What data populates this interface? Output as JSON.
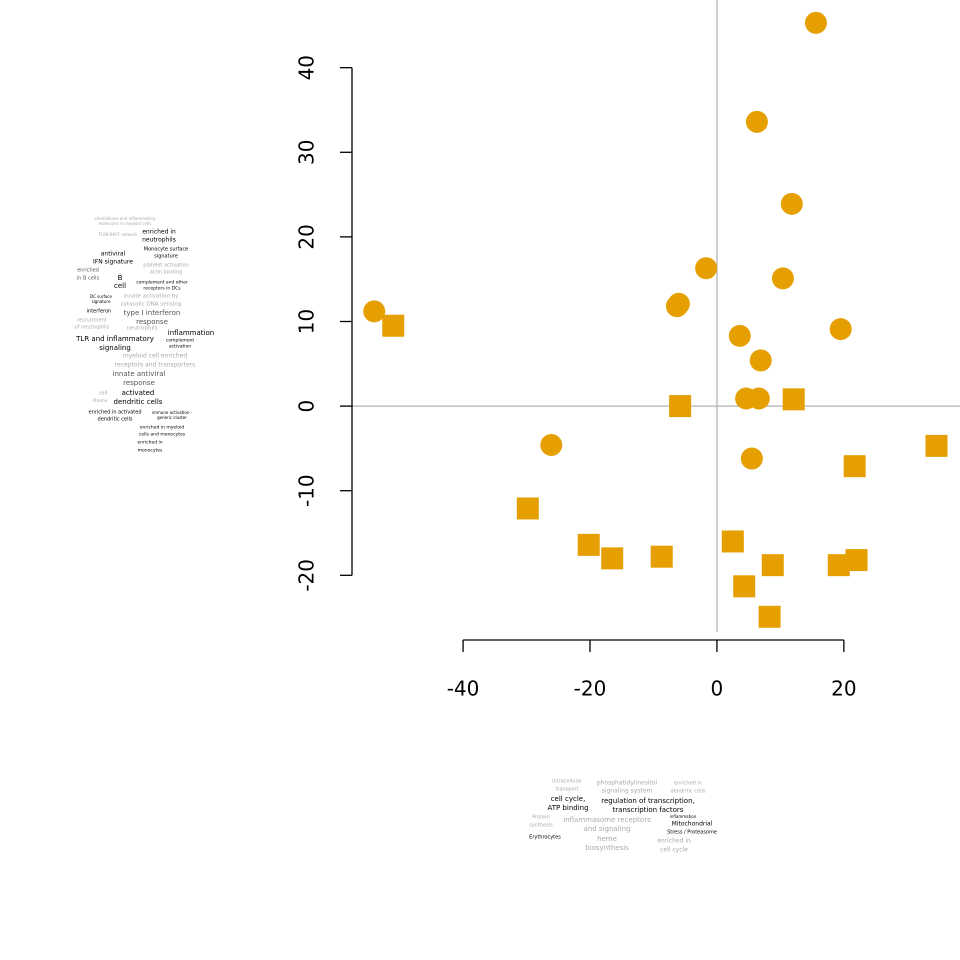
{
  "chart_data": {
    "type": "scatter",
    "xlim": [
      -57.5,
      38.3
    ],
    "ylim": [
      -26.7,
      48.0
    ],
    "xticks": [
      -40,
      -20,
      0,
      20
    ],
    "yticks": [
      -20,
      -10,
      0,
      10,
      20,
      30,
      40
    ],
    "reference_lines": {
      "x": 0,
      "y": 0
    },
    "series": [
      {
        "marker": "circle",
        "color": "#E69F00",
        "x": [
          15.6,
          6.3,
          11.8,
          -1.7,
          10.4,
          -6.0,
          -6.3,
          -54.0,
          19.5,
          3.6,
          6.9,
          4.6,
          6.6,
          -26.1,
          5.5
        ],
        "values": [
          45.3,
          33.6,
          23.9,
          16.3,
          15.1,
          12.1,
          11.8,
          11.2,
          9.1,
          8.3,
          5.4,
          0.9,
          0.9,
          -4.6,
          -6.2
        ]
      },
      {
        "marker": "square",
        "color": "#E69F00",
        "x": [
          -51.0,
          -5.8,
          12.1,
          34.6,
          21.7,
          -29.8,
          -20.2,
          -16.5,
          -8.7,
          2.5,
          4.3,
          8.8,
          8.3,
          19.2,
          22.0
        ],
        "values": [
          9.5,
          0.0,
          0.8,
          -4.7,
          -7.1,
          -12.1,
          -16.4,
          -18.0,
          -17.8,
          -16.0,
          -21.3,
          -18.8,
          -24.9,
          -18.8,
          -18.2
        ]
      }
    ],
    "word_cloud_left": [
      "chemokines and inflammatory",
      "molecules in myeloid cells",
      "enriched in",
      "neutrophils",
      "TLR8-BAFF network",
      "Monocyte surface",
      "signature",
      "antiviral",
      "IFN signature",
      "platelet activation",
      "actin binding",
      "enriched",
      "in B cells",
      "B",
      "cell",
      "complement and other",
      "receptors in DCs",
      "innate activation by",
      "cytosolic DNA sensing",
      "DC surface",
      "signature",
      "interferon",
      "type I interferon",
      "response",
      "recruitment",
      "of neutrophils",
      "neutrophils",
      "inflammation",
      "complement",
      "activation",
      "TLR and inflammatory",
      "signaling",
      "myeloid cell enriched",
      "receptors and transporters",
      "innate antiviral",
      "response",
      "cell",
      "activated",
      "dendritic cells",
      "Plasma",
      "enriched in activated",
      "dendritic cells",
      "immune activation -",
      "generic cluster",
      "enriched in myeloid",
      "cells and monocytes",
      "enriched in",
      "monocytes"
    ],
    "word_cloud_bottom": [
      "intracellular",
      "transport",
      "phosphatidylinositol",
      "signaling system",
      "enriched in",
      "dendritic cells",
      "cell cycle,",
      "ATP binding",
      "regulation of transcription,",
      "transcription factors",
      "Protein",
      "synthesis",
      "inflammasome receptors",
      "and signaling",
      "inflammation",
      "Mitochondrial",
      "Stress / Proteasome",
      "Erythrocytes",
      "heme",
      "biosynthesis",
      "enriched in",
      "cell cycle"
    ]
  }
}
